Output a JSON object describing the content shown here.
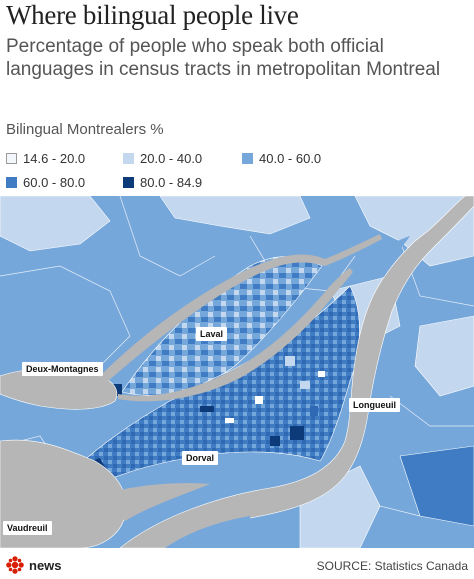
{
  "header": {
    "title": "Where bilingual people live",
    "subtitle": "Percentage of people who speak both official languages in census tracts in metropolitan Montreal"
  },
  "legend": {
    "title": "Bilingual Montrealers %",
    "items": [
      {
        "label": "14.6 - 20.0",
        "color": "#f3f6fb"
      },
      {
        "label": "20.0 - 40.0",
        "color": "#c3d7ee"
      },
      {
        "label": "40.0 - 60.0",
        "color": "#76a7da"
      },
      {
        "label": "60.0 - 80.0",
        "color": "#3f7cc4"
      },
      {
        "label": "80.0 - 84.9",
        "color": "#0d3b7a"
      }
    ]
  },
  "map": {
    "water_color": "#b6b6b6",
    "labels": {
      "laval": "Laval",
      "deux_montagnes": "Deux-Montagnes",
      "longueuil": "Longueuil",
      "dorval": "Dorval",
      "vaudreuil": "Vaudreuil"
    }
  },
  "footer": {
    "brand": "news",
    "source": "SOURCE: Statistics Canada"
  }
}
